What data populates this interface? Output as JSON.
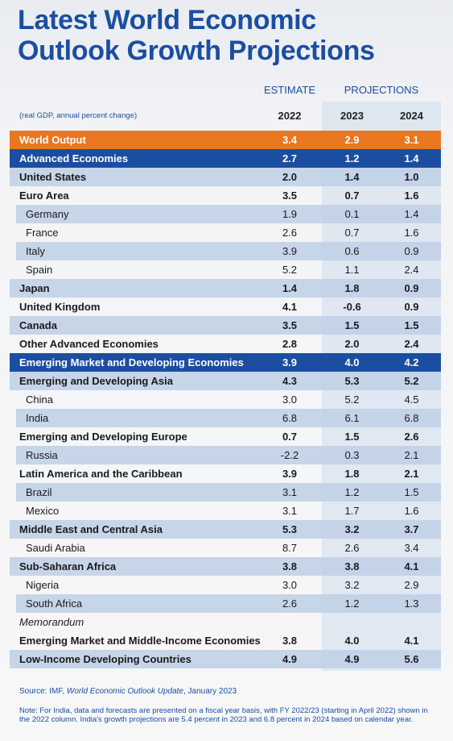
{
  "title": [
    "Latest World Economic",
    "Outlook Growth Projections"
  ],
  "header": {
    "estimate": "ESTIMATE",
    "projections": "PROJECTIONS",
    "unit": "(real GDP, annual percent change)",
    "years": [
      "2022",
      "2023",
      "2024"
    ]
  },
  "table": {
    "rows": [
      [
        "World Output",
        "3.4",
        "2.9",
        "3.1"
      ],
      [
        "Advanced Economies",
        "2.7",
        "1.2",
        "1.4"
      ],
      [
        "United States",
        "2.0",
        "1.4",
        "1.0"
      ],
      [
        "Euro Area",
        "3.5",
        "0.7",
        "1.6"
      ],
      [
        "Germany",
        "1.9",
        "0.1",
        "1.4"
      ],
      [
        "France",
        "2.6",
        "0.7",
        "1.6"
      ],
      [
        "Italy",
        "3.9",
        "0.6",
        "0.9"
      ],
      [
        "Spain",
        "5.2",
        "1.1",
        "2.4"
      ],
      [
        "Japan",
        "1.4",
        "1.8",
        "0.9"
      ],
      [
        "United Kingdom",
        "4.1",
        "-0.6",
        "0.9"
      ],
      [
        "Canada",
        "3.5",
        "1.5",
        "1.5"
      ],
      [
        "Other Advanced Economies",
        "2.8",
        "2.0",
        "2.4"
      ],
      [
        "Emerging Market and Developing Economies",
        "3.9",
        "4.0",
        "4.2"
      ],
      [
        "Emerging and Developing Asia",
        "4.3",
        "5.3",
        "5.2"
      ],
      [
        "China",
        "3.0",
        "5.2",
        "4.5"
      ],
      [
        "India",
        "6.8",
        "6.1",
        "6.8"
      ],
      [
        "Emerging and Developing Europe",
        "0.7",
        "1.5",
        "2.6"
      ],
      [
        "Russia",
        "-2.2",
        "0.3",
        "2.1"
      ],
      [
        "Latin America and the Caribbean",
        "3.9",
        "1.8",
        "2.1"
      ],
      [
        "Brazil",
        "3.1",
        "1.2",
        "1.5"
      ],
      [
        "Mexico",
        "3.1",
        "1.7",
        "1.6"
      ],
      [
        "Middle East and Central Asia",
        "5.3",
        "3.2",
        "3.7"
      ],
      [
        "Saudi Arabia",
        "8.7",
        "2.6",
        "3.4"
      ],
      [
        "Sub-Saharan Africa",
        "3.8",
        "3.8",
        "4.1"
      ],
      [
        "Nigeria",
        "3.0",
        "3.2",
        "2.9"
      ],
      [
        "South Africa",
        "2.6",
        "1.2",
        "1.3"
      ],
      [
        "Memorandum"
      ],
      [
        "Emerging Market and Middle-Income Economies",
        "3.8",
        "4.0",
        "4.1"
      ],
      [
        "Low-Income Developing Countries",
        "4.9",
        "4.9",
        "5.6"
      ]
    ]
  },
  "source": [
    "Source: IMF, ",
    "World Economic Outlook Update",
    ", January 2023"
  ],
  "note": "Note: For India, data and forecasts are presented on a fiscal year basis, with FY 2022/23 (starting in April 2022) shown in the 2022 column. India's growth projections are 5.4 percent in 2023 and 6.8 percent in 2024 based on calendar year."
}
